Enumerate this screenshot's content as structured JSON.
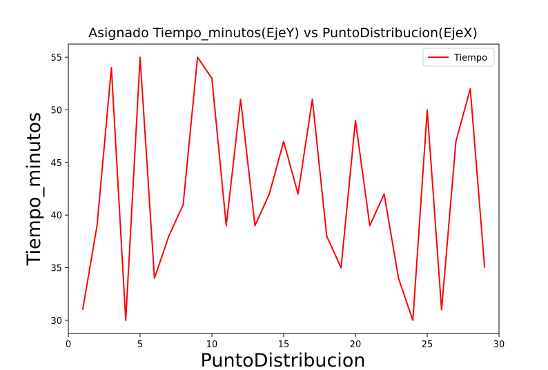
{
  "chart_data": {
    "type": "line",
    "title": "Asignado Tiempo_minutos(EjeY) vs PuntoDistribucion(EjeX)",
    "xlabel": "PuntoDistribucion",
    "ylabel": "Tiempo_minutos",
    "xlim": [
      0,
      30
    ],
    "ylim": [
      28.75,
      56.25
    ],
    "x_ticks": [
      0,
      5,
      10,
      15,
      20,
      25,
      30
    ],
    "y_ticks": [
      30,
      35,
      40,
      45,
      50,
      55
    ],
    "grid": false,
    "legend_position": "top-right",
    "series": [
      {
        "name": "Tiempo",
        "color": "#ff0000",
        "x": [
          1,
          2,
          3,
          4,
          5,
          6,
          7,
          8,
          9,
          10,
          11,
          12,
          13,
          14,
          15,
          16,
          17,
          18,
          19,
          20,
          21,
          22,
          23,
          24,
          25,
          26,
          27,
          28,
          29
        ],
        "y": [
          31,
          39,
          54,
          30,
          55,
          34,
          38,
          41,
          55,
          53,
          39,
          51,
          39,
          42,
          47,
          42,
          51,
          38,
          35,
          49,
          39,
          42,
          34,
          30,
          50,
          31,
          47,
          52,
          35
        ]
      }
    ]
  }
}
